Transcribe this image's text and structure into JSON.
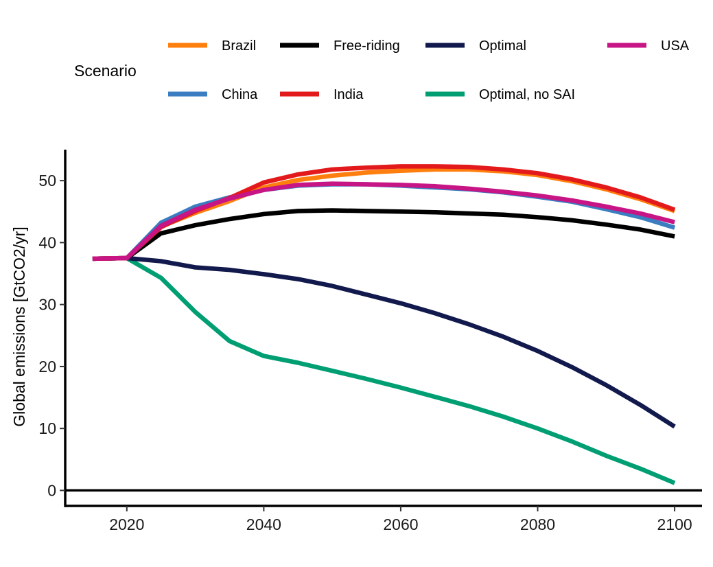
{
  "chart_data": {
    "type": "line",
    "xlabel": "",
    "ylabel": "Global emissions [GtCO2/yr]",
    "xlim": [
      2011,
      2104
    ],
    "ylim": [
      -2.5,
      55
    ],
    "x_ticks": [
      2020,
      2040,
      2060,
      2080,
      2100
    ],
    "y_ticks": [
      0,
      10,
      20,
      30,
      40,
      50
    ],
    "zero_line": true,
    "grid": false,
    "legend": {
      "title": "Scenario",
      "position": "top"
    },
    "x": [
      2015,
      2020,
      2025,
      2030,
      2035,
      2040,
      2045,
      2050,
      2055,
      2060,
      2065,
      2070,
      2075,
      2080,
      2085,
      2090,
      2095,
      2100
    ],
    "series": [
      {
        "name": "Optimal, no SAI",
        "color": "#009E73",
        "values": [
          37.4,
          37.5,
          34.3,
          28.8,
          24.1,
          21.7,
          20.6,
          19.3,
          18.0,
          16.6,
          15.1,
          13.6,
          11.9,
          10.0,
          7.9,
          5.6,
          3.5,
          1.2
        ]
      },
      {
        "name": "Optimal",
        "color": "#121A4D",
        "values": [
          37.4,
          37.5,
          37.0,
          36.0,
          35.6,
          34.9,
          34.1,
          33.0,
          31.6,
          30.2,
          28.6,
          26.8,
          24.8,
          22.5,
          19.9,
          17.0,
          13.8,
          10.3
        ]
      },
      {
        "name": "Free-riding",
        "color": "#000000",
        "values": [
          37.4,
          37.5,
          41.5,
          42.8,
          43.8,
          44.6,
          45.1,
          45.2,
          45.1,
          45.0,
          44.9,
          44.7,
          44.5,
          44.1,
          43.6,
          42.9,
          42.1,
          41.0
        ]
      },
      {
        "name": "China",
        "color": "#3A7DC0",
        "values": [
          37.4,
          37.5,
          43.2,
          45.8,
          47.3,
          48.5,
          49.2,
          49.4,
          49.4,
          49.2,
          48.9,
          48.6,
          48.1,
          47.4,
          46.6,
          45.4,
          44.1,
          42.4
        ]
      },
      {
        "name": "Brazil",
        "color": "#FF7F0E",
        "values": [
          37.4,
          37.5,
          42.6,
          44.8,
          46.7,
          48.9,
          50.1,
          50.8,
          51.3,
          51.6,
          51.8,
          51.8,
          51.5,
          50.9,
          49.9,
          48.6,
          47.0,
          45.1
        ]
      },
      {
        "name": "India",
        "color": "#E31A1C",
        "values": [
          37.4,
          37.5,
          42.5,
          45.1,
          47.2,
          49.7,
          51.0,
          51.8,
          52.1,
          52.3,
          52.3,
          52.2,
          51.8,
          51.2,
          50.2,
          48.9,
          47.3,
          45.3
        ]
      },
      {
        "name": "USA",
        "color": "#C71585",
        "values": [
          37.4,
          37.5,
          42.7,
          45.3,
          47.1,
          48.5,
          49.3,
          49.5,
          49.4,
          49.3,
          49.1,
          48.7,
          48.2,
          47.6,
          46.8,
          45.8,
          44.7,
          43.3
        ]
      }
    ],
    "legend_order": [
      [
        "Brazil",
        "Free-riding",
        "Optimal",
        "USA"
      ],
      [
        "China",
        "India",
        "Optimal, no SAI"
      ]
    ]
  }
}
